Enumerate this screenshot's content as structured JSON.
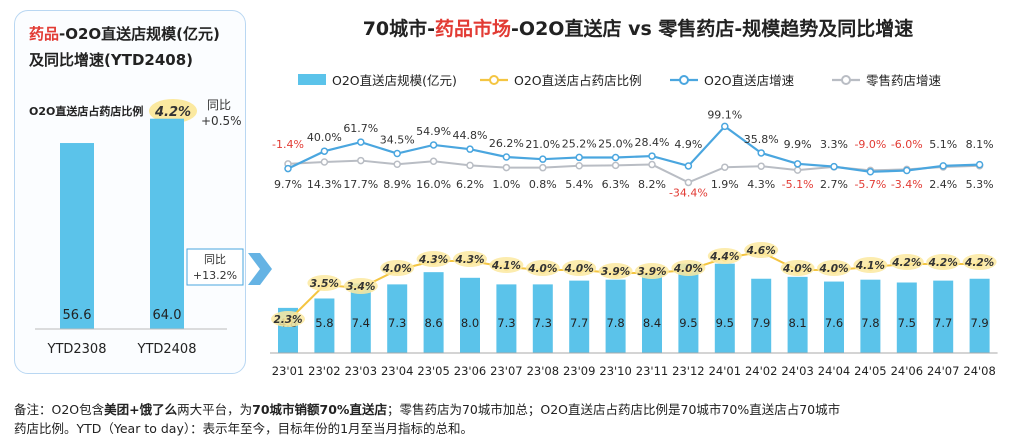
{
  "left_panel": {
    "title_part1": "药品",
    "title_part2": "-O2O直送店规模(亿元)",
    "title_line2": "及同比增速(YTD2408)",
    "share_label": "O2O直送店占药店比例",
    "share_value": "4.2%",
    "share_yoy_label": "同比",
    "share_yoy_value": "+0.5%",
    "growth_label": "同比",
    "growth_value": "+13.2%"
  },
  "main_title": {
    "part1": "70城市-",
    "part2": "药品市场",
    "part3": "-O2O直送店 vs 零售药店-规模趋势及同比增速"
  },
  "footnote": {
    "p1": "备注：O2O包含",
    "b1": "美团+饿了么",
    "p2": "两大平台，为",
    "b2": "70城市销额70%直送店",
    "p3": "；零售药店为70城市加总；O2O直送店占药店比例是70城市70%直送店占70城市",
    "line2": "药店比例。YTD（Year to day）：表示年至今，目标年份的1月至当月指标的总和。"
  },
  "colors": {
    "bar": "#5bc3ea",
    "share_line": "#f4c542",
    "share_label_bg": "#fbe9a0",
    "o2o_growth": "#4aa6df",
    "retail_growth": "#b9bdc4",
    "negative": "#e23b34",
    "accent_red": "#e23b34",
    "arrow": "#4aa6df"
  },
  "chart_data": [
    {
      "type": "bar",
      "categories": [
        "YTD2308",
        "YTD2408"
      ],
      "values": [
        56.6,
        64.0
      ],
      "ylim": [
        0,
        70
      ]
    },
    {
      "type": "bar",
      "categories": [
        "23'01",
        "23'02",
        "23'03",
        "23'04",
        "23'05",
        "23'06",
        "23'07",
        "23'08",
        "23'09",
        "23'10",
        "23'11",
        "23'12",
        "24'01",
        "24'02",
        "24'03",
        "24'04",
        "24'05",
        "24'06",
        "24'07",
        "24'08"
      ],
      "legend": [
        "O2O直送店规模(亿元)",
        "O2O直送店占药店比例",
        "O2O直送店增速",
        "零售药店增速"
      ],
      "legend_position": "top",
      "series": [
        {
          "name": "O2O直送店规模(亿元)",
          "type": "bar",
          "values": [
            4.8,
            5.8,
            7.4,
            7.3,
            8.6,
            8.0,
            7.3,
            7.3,
            7.7,
            7.8,
            8.4,
            9.5,
            9.5,
            7.9,
            8.1,
            7.6,
            7.8,
            7.5,
            7.7,
            7.9
          ]
        },
        {
          "name": "O2O直送店占药店比例",
          "type": "line",
          "unit": "%",
          "values": [
            2.3,
            3.5,
            3.4,
            4.0,
            4.3,
            4.3,
            4.1,
            4.0,
            4.0,
            3.9,
            3.9,
            4.0,
            4.4,
            4.6,
            4.0,
            4.0,
            4.1,
            4.2,
            4.2,
            4.2
          ]
        },
        {
          "name": "O2O直送店增速",
          "type": "line",
          "unit": "%",
          "values": [
            -1.4,
            40.0,
            61.7,
            34.5,
            54.9,
            44.8,
            26.2,
            21.0,
            25.2,
            25.0,
            28.4,
            4.9,
            99.1,
            35.8,
            9.9,
            3.3,
            -9.0,
            -6.0,
            5.1,
            8.1
          ]
        },
        {
          "name": "零售药店增速",
          "type": "line",
          "unit": "%",
          "values": [
            9.7,
            14.3,
            17.7,
            8.9,
            16.0,
            6.2,
            1.0,
            0.8,
            5.4,
            6.3,
            8.2,
            -34.4,
            1.9,
            4.3,
            -5.1,
            2.7,
            -5.7,
            -3.4,
            2.4,
            5.3
          ]
        }
      ]
    }
  ]
}
